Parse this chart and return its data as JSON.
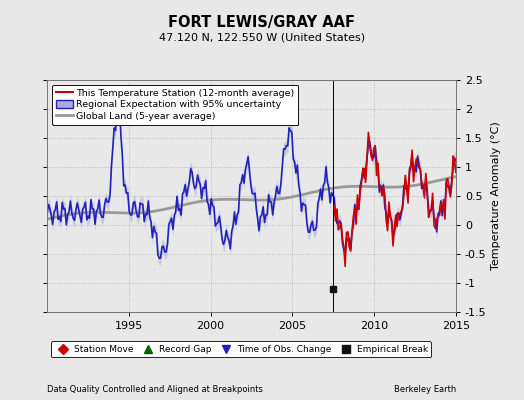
{
  "title": "FORT LEWIS/GRAY AAF",
  "subtitle": "47.120 N, 122.550 W (United States)",
  "ylabel": "Temperature Anomaly (°C)",
  "xlim": [
    1990.0,
    2015.0
  ],
  "ylim": [
    -1.5,
    2.5
  ],
  "yticks": [
    -1.5,
    -1.0,
    -0.5,
    0.0,
    0.5,
    1.0,
    1.5,
    2.0,
    2.5
  ],
  "xticks": [
    1995,
    2000,
    2005,
    2010,
    2015
  ],
  "footer_left": "Data Quality Controlled and Aligned at Breakpoints",
  "footer_right": "Berkeley Earth",
  "bg_color": "#e8e8e8",
  "plot_bg_color": "#e8e8e8",
  "red_start_year": 2007.5,
  "empirical_break_x": 2007.5,
  "empirical_break_y": -1.1,
  "band_color": "#aaaadd",
  "band_alpha": 0.5,
  "blue_color": "#2222bb",
  "red_color": "#cc0000",
  "gray_color": "#999999",
  "legend_top": [
    {
      "label": "This Temperature Station (12-month average)",
      "color": "#cc0000",
      "lw": 1.5
    },
    {
      "label": "Regional Expectation with 95% uncertainty",
      "color": "#2222bb",
      "band": "#aaaadd"
    },
    {
      "label": "Global Land (5-year average)",
      "color": "#999999",
      "lw": 2.0
    }
  ],
  "bottom_legend": [
    {
      "label": "Station Move",
      "marker": "D",
      "color": "#cc0000"
    },
    {
      "label": "Record Gap",
      "marker": "^",
      "color": "#006600"
    },
    {
      "label": "Time of Obs. Change",
      "marker": "v",
      "color": "#2222bb"
    },
    {
      "label": "Empirical Break",
      "marker": "s",
      "color": "#111111"
    }
  ]
}
